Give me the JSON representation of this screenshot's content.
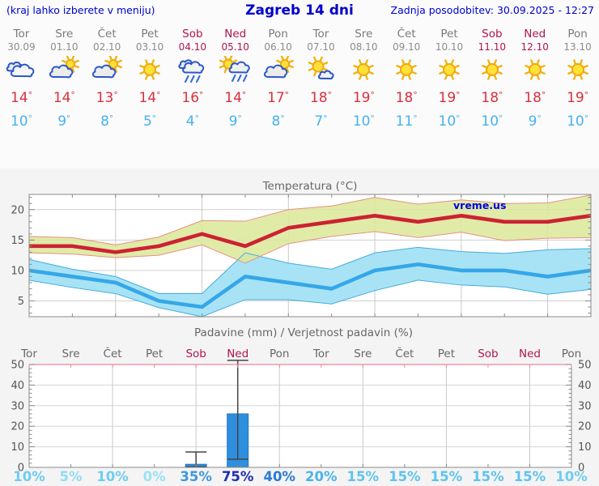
{
  "header": {
    "left": "(kraj lahko izberete v meniju)",
    "title": "Zagreb 14 dni",
    "right": "Zadnja posodobitev: 30.09.2025 - 12:27"
  },
  "forecast": {
    "days": [
      {
        "day": "Tor",
        "date": "30.09",
        "weekend": false,
        "icon": "cloudy",
        "tmax": 14,
        "tmin": 10
      },
      {
        "day": "Sre",
        "date": "01.10",
        "weekend": false,
        "icon": "partly-cloudy",
        "tmax": 14,
        "tmin": 9
      },
      {
        "day": "Čet",
        "date": "02.10",
        "weekend": false,
        "icon": "partly-cloudy",
        "tmax": 13,
        "tmin": 8
      },
      {
        "day": "Pet",
        "date": "03.10",
        "weekend": false,
        "icon": "sunny",
        "tmax": 14,
        "tmin": 5
      },
      {
        "day": "Sob",
        "date": "04.10",
        "weekend": true,
        "icon": "rain",
        "tmax": 16,
        "tmin": 4
      },
      {
        "day": "Ned",
        "date": "05.10",
        "weekend": true,
        "icon": "sun-rain",
        "tmax": 14,
        "tmin": 9
      },
      {
        "day": "Pon",
        "date": "06.10",
        "weekend": false,
        "icon": "partly-cloudy",
        "tmax": 17,
        "tmin": 8
      },
      {
        "day": "Tor",
        "date": "07.10",
        "weekend": false,
        "icon": "mostly-sunny",
        "tmax": 18,
        "tmin": 7
      },
      {
        "day": "Sre",
        "date": "08.10",
        "weekend": false,
        "icon": "sunny",
        "tmax": 19,
        "tmin": 10
      },
      {
        "day": "Čet",
        "date": "09.10",
        "weekend": false,
        "icon": "sunny",
        "tmax": 18,
        "tmin": 11
      },
      {
        "day": "Pet",
        "date": "10.10",
        "weekend": false,
        "icon": "sunny",
        "tmax": 19,
        "tmin": 10
      },
      {
        "day": "Sob",
        "date": "11.10",
        "weekend": true,
        "icon": "sunny",
        "tmax": 18,
        "tmin": 10
      },
      {
        "day": "Ned",
        "date": "12.10",
        "weekend": true,
        "icon": "sunny",
        "tmax": 18,
        "tmin": 9
      },
      {
        "day": "Pon",
        "date": "13.10",
        "weekend": false,
        "icon": "sunny",
        "tmax": 19,
        "tmin": 10
      }
    ],
    "colors": {
      "tmax": "#dc2f3c",
      "tmin": "#45b2f0",
      "day": "#7a7a7a",
      "weekend": "#b0144f"
    }
  },
  "chart_data": [
    {
      "type": "line",
      "title": "Temperatura (°C)",
      "watermark": "vreme.us",
      "x_days": [
        "Tor",
        "Sre",
        "Čet",
        "Pet",
        "Sob",
        "Ned",
        "Pon",
        "Tor",
        "Sre",
        "Čet",
        "Pet",
        "Sob",
        "Ned",
        "Pon"
      ],
      "ylim": [
        2.4,
        22.5
      ],
      "yticks": [
        5,
        10,
        15,
        20
      ],
      "grid_day_indices": [
        2,
        4,
        6,
        8,
        10,
        12
      ],
      "series": [
        {
          "name": "max_temp",
          "color": "#cc2233",
          "values": [
            14,
            14,
            13,
            14,
            16,
            14,
            17,
            18,
            19,
            18,
            19,
            18,
            18,
            19
          ]
        },
        {
          "name": "max_range_hi",
          "values": [
            15.6,
            15.4,
            14.2,
            15.5,
            18.2,
            18.1,
            20.0,
            20.6,
            22.0,
            20.9,
            21.6,
            21.0,
            21.1,
            22.4
          ]
        },
        {
          "name": "max_range_lo",
          "values": [
            12.9,
            12.7,
            12.1,
            12.5,
            14.2,
            11.2,
            14.4,
            15.6,
            16.4,
            15.4,
            16.3,
            14.9,
            15.3,
            15.4
          ]
        },
        {
          "name": "min_temp",
          "color": "#35a7e8",
          "values": [
            10,
            9,
            8,
            5,
            4,
            9,
            8,
            7,
            10,
            11,
            10,
            10,
            9,
            10
          ]
        },
        {
          "name": "min_range_hi",
          "values": [
            11.8,
            10.2,
            9.0,
            6.2,
            6.2,
            12.9,
            11.2,
            10.2,
            12.9,
            13.8,
            13.1,
            12.8,
            13.4,
            13.6
          ]
        },
        {
          "name": "min_range_lo",
          "values": [
            8.4,
            7.2,
            6.2,
            3.9,
            2.4,
            5.2,
            5.2,
            4.5,
            6.7,
            8.4,
            7.6,
            7.3,
            6.1,
            6.9
          ]
        }
      ],
      "band_colors": {
        "max_fill": "#dce89c",
        "max_edge": "#e89080",
        "min_fill": "#a8e3f5",
        "min_edge": "#44aadd"
      }
    },
    {
      "type": "bar",
      "title": "Padavine (mm) / Verjetnost padavin (%)",
      "categories": [
        "Tor",
        "Sre",
        "Čet",
        "Pet",
        "Sob",
        "Ned",
        "Pon",
        "Tor",
        "Sre",
        "Čet",
        "Pet",
        "Sob",
        "Ned",
        "Pon"
      ],
      "weekend_indices": [
        4,
        5,
        11,
        12
      ],
      "ylim": [
        0,
        50
      ],
      "yticks": [
        0,
        10,
        20,
        30,
        40,
        50
      ],
      "grid_day_indices": [
        2,
        4,
        6,
        8,
        10,
        12
      ],
      "precip_mm": [
        0,
        0,
        0,
        0,
        1.5,
        26,
        0,
        0,
        0,
        0,
        0,
        0,
        0,
        0
      ],
      "whiskers": [
        null,
        null,
        null,
        null,
        {
          "lo": 0.3,
          "hi": 7.5
        },
        {
          "lo": 4,
          "hi": 52
        },
        null,
        null,
        null,
        null,
        null,
        null,
        null,
        null
      ],
      "probability_pct": [
        10,
        5,
        10,
        0,
        35,
        75,
        40,
        20,
        15,
        15,
        15,
        15,
        15,
        10
      ],
      "bar_color": "#2f8fdf",
      "pct_colors": [
        "#6fcdf1",
        "#8edcf6",
        "#6fcdf1",
        "#98e2f8",
        "#3e97dd",
        "#1d2eb0",
        "#2d7ad2",
        "#4cb2e8",
        "#5fc3ed",
        "#5fc3ed",
        "#5fc3ed",
        "#5fc3ed",
        "#5fc3ed",
        "#6fcdf1"
      ]
    }
  ]
}
